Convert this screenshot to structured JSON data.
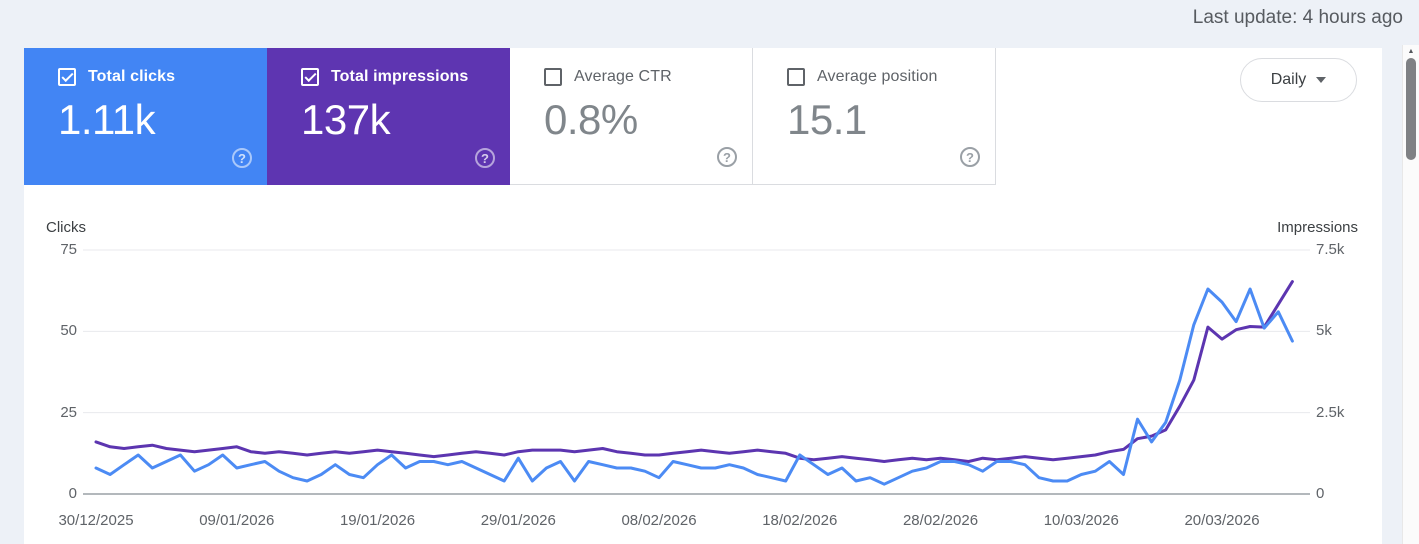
{
  "header": {
    "last_update": "Last update: 4 hours ago"
  },
  "metric_cards": [
    {
      "id": "total-clicks",
      "label": "Total clicks",
      "value": "1.11k",
      "checked": true,
      "color": "#4285f4",
      "help_icon": "?"
    },
    {
      "id": "total-impressions",
      "label": "Total impressions",
      "value": "137k",
      "checked": true,
      "color": "#5e35b1",
      "help_icon": "?"
    },
    {
      "id": "average-ctr",
      "label": "Average CTR",
      "value": "0.8%",
      "checked": false,
      "help_icon": "?"
    },
    {
      "id": "average-position",
      "label": "Average position",
      "value": "15.1",
      "checked": false,
      "help_icon": "?"
    }
  ],
  "granularity_dropdown": {
    "value": "Daily"
  },
  "chart_data": {
    "type": "line",
    "left_axis": {
      "title": "Clicks",
      "max": 75,
      "ticks": [
        {
          "label": "75",
          "value": 75
        },
        {
          "label": "50",
          "value": 50
        },
        {
          "label": "25",
          "value": 25
        },
        {
          "label": "0",
          "value": 0
        }
      ]
    },
    "right_axis": {
      "title": "Impressions",
      "max": 7500,
      "ticks": [
        {
          "label": "7.5k",
          "value": 7500
        },
        {
          "label": "5k",
          "value": 5000
        },
        {
          "label": "2.5k",
          "value": 2500
        },
        {
          "label": "0",
          "value": 0
        }
      ]
    },
    "x_tick_labels": [
      "30/12/2025",
      "09/01/2026",
      "19/01/2026",
      "29/01/2026",
      "08/02/2026",
      "18/02/2026",
      "28/02/2026",
      "10/03/2026",
      "20/03/2026"
    ],
    "x_tick_days": [
      0,
      10,
      20,
      30,
      40,
      50,
      60,
      70,
      80
    ],
    "grid": true,
    "legend_position": "none",
    "series": [
      {
        "name": "Impressions",
        "axis": "right",
        "color": "#5c35b0",
        "values": [
          1600,
          1450,
          1400,
          1450,
          1500,
          1400,
          1350,
          1300,
          1350,
          1400,
          1450,
          1300,
          1250,
          1300,
          1250,
          1200,
          1250,
          1300,
          1250,
          1300,
          1350,
          1300,
          1250,
          1200,
          1150,
          1200,
          1250,
          1300,
          1250,
          1200,
          1300,
          1350,
          1350,
          1350,
          1300,
          1350,
          1400,
          1300,
          1250,
          1200,
          1200,
          1250,
          1300,
          1350,
          1300,
          1250,
          1300,
          1350,
          1300,
          1250,
          1100,
          1050,
          1100,
          1150,
          1100,
          1050,
          1000,
          1050,
          1100,
          1050,
          1100,
          1050,
          1000,
          1100,
          1050,
          1100,
          1150,
          1100,
          1050,
          1100,
          1150,
          1200,
          1300,
          1370,
          1700,
          1780,
          1970,
          2700,
          3500,
          5130,
          4760,
          5050,
          5150,
          5130,
          5830,
          6530
        ]
      },
      {
        "name": "Clicks",
        "axis": "left",
        "color": "#4c8bf4",
        "values": [
          8,
          6,
          9,
          12,
          8,
          10,
          12,
          7,
          9,
          12,
          8,
          9,
          10,
          7,
          5,
          4,
          6,
          9,
          6,
          5,
          9,
          12,
          8,
          10,
          10,
          9,
          10,
          8,
          6,
          4,
          11,
          4,
          8,
          10,
          4,
          10,
          9,
          8,
          8,
          7,
          5,
          10,
          9,
          8,
          8,
          9,
          8,
          6,
          5,
          4,
          12,
          9,
          6,
          8,
          4,
          5,
          3,
          5,
          7,
          8,
          10,
          10,
          9,
          7,
          10,
          10,
          9,
          5,
          4,
          4,
          6,
          7,
          10,
          6,
          23,
          16,
          22,
          35,
          52,
          63,
          59,
          53,
          63,
          51,
          56,
          47
        ]
      }
    ]
  },
  "scrollbar": {
    "up_arrow": "▲"
  }
}
